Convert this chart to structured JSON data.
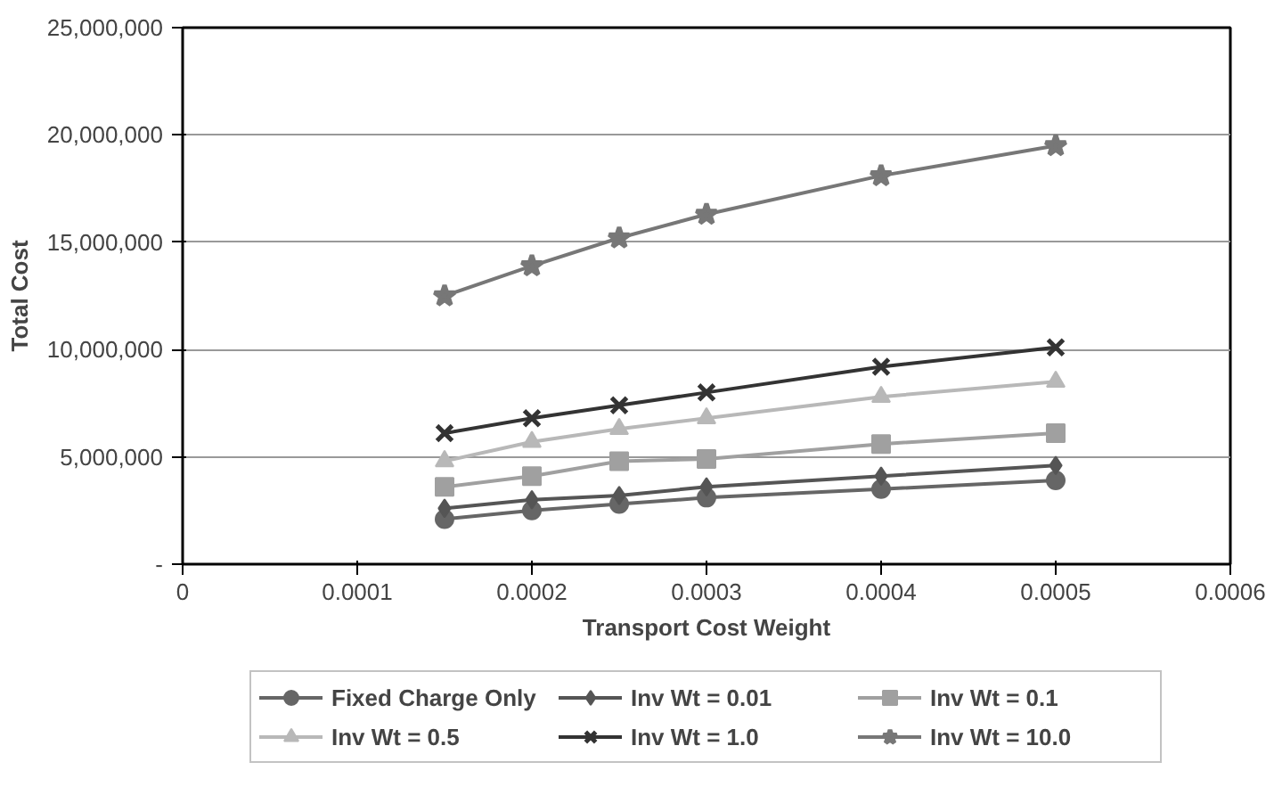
{
  "chart_data": {
    "type": "line",
    "xlabel": "Transport Cost Weight",
    "ylabel": "Total Cost",
    "x": [
      0.00015,
      0.0002,
      0.00025,
      0.0003,
      0.0004,
      0.0005
    ],
    "xlim": [
      0,
      0.0006
    ],
    "xticks": [
      0,
      0.0001,
      0.0002,
      0.0003,
      0.0004,
      0.0005,
      0.0006
    ],
    "ylim": [
      0,
      25000000
    ],
    "yticks": [
      {
        "value": 0,
        "label": "-"
      },
      {
        "value": 5000000,
        "label": "5,000,000"
      },
      {
        "value": 10000000,
        "label": "10,000,000"
      },
      {
        "value": 15000000,
        "label": "15,000,000"
      },
      {
        "value": 20000000,
        "label": "20,000,000"
      },
      {
        "value": 25000000,
        "label": "25,000,000"
      }
    ],
    "grid": "y",
    "legend": "bottom",
    "series": [
      {
        "name": "Fixed Charge Only",
        "color": "#666666",
        "marker": "circle",
        "values": [
          2100000,
          2500000,
          2800000,
          3100000,
          3500000,
          3900000
        ]
      },
      {
        "name": "Inv Wt = 0.01",
        "color": "#555555",
        "marker": "diamond",
        "values": [
          2600000,
          3000000,
          3200000,
          3600000,
          4100000,
          4600000
        ]
      },
      {
        "name": "Inv Wt = 0.1",
        "color": "#a0a0a0",
        "marker": "square",
        "values": [
          3600000,
          4100000,
          4800000,
          4900000,
          5600000,
          6100000
        ]
      },
      {
        "name": "Inv Wt = 0.5",
        "color": "#b8b8b8",
        "marker": "triangle",
        "values": [
          4800000,
          5700000,
          6300000,
          6800000,
          7800000,
          8500000
        ]
      },
      {
        "name": "Inv Wt = 1.0",
        "color": "#333333",
        "marker": "cross",
        "values": [
          6100000,
          6800000,
          7400000,
          8000000,
          9200000,
          10100000
        ]
      },
      {
        "name": "Inv Wt = 10.0",
        "color": "#777777",
        "marker": "star",
        "values": [
          12500000,
          13900000,
          15200000,
          16300000,
          18100000,
          19500000
        ]
      }
    ]
  }
}
